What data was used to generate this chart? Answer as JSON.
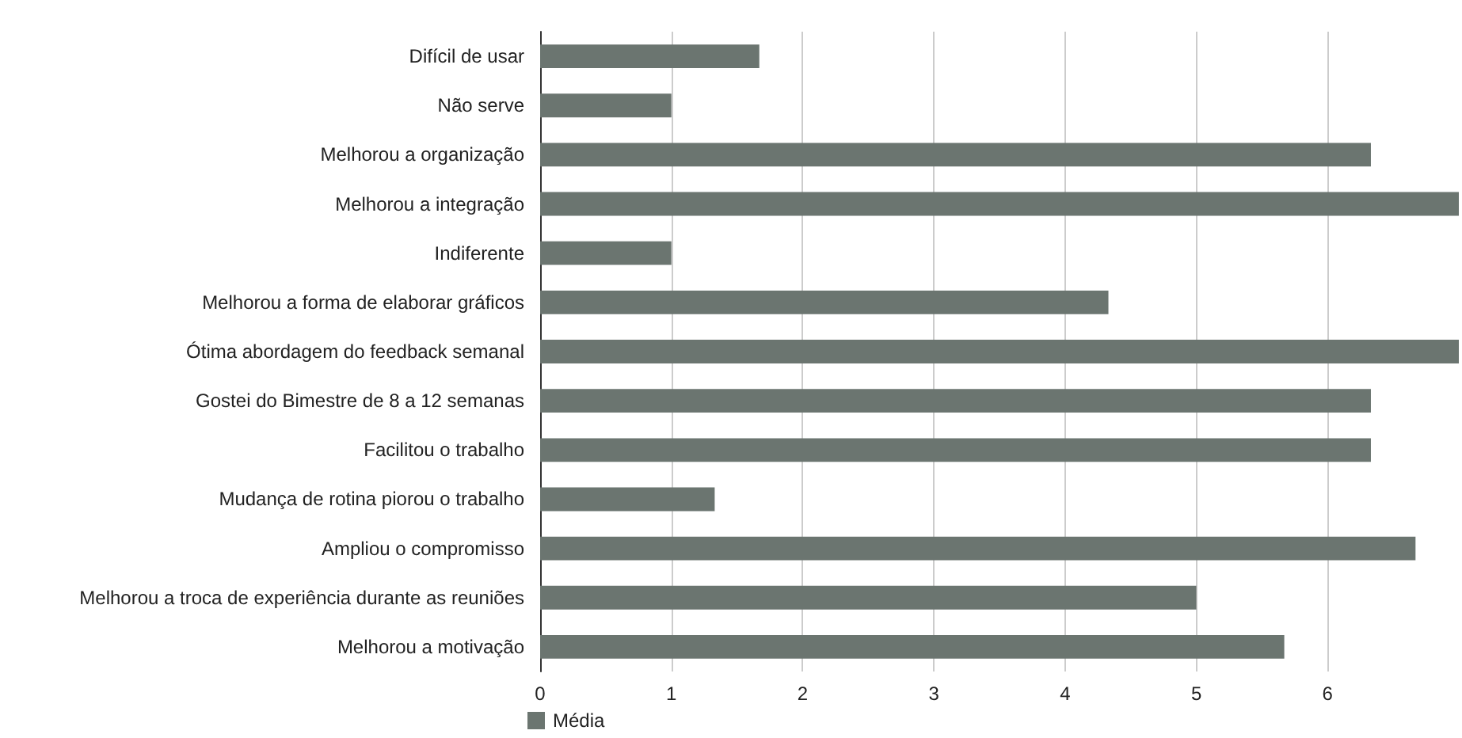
{
  "chart_data": {
    "type": "bar",
    "orientation": "horizontal",
    "categories": [
      "Difícil de usar",
      "Não serve",
      "Melhorou a organização",
      "Melhorou a integração",
      "Indiferente",
      "Melhorou a forma de elaborar gráficos",
      "Ótima abordagem do feedback semanal",
      "Gostei do Bimestre de 8 a 12 semanas",
      "Facilitou o trabalho",
      "Mudança de rotina piorou o trabalho",
      "Ampliou o compromisso",
      "Melhorou a troca de experiência durante as reuniões",
      "Melhorou a motivação"
    ],
    "series": [
      {
        "name": "Média",
        "color": "#6b7570",
        "values": [
          1.67,
          1,
          6.33,
          7,
          1,
          4.33,
          7,
          6.33,
          6.33,
          1.33,
          6.67,
          5,
          5.67
        ]
      }
    ],
    "xlim": [
      0,
      7
    ],
    "xticks": [
      0,
      1,
      2,
      3,
      4,
      5,
      6
    ],
    "grid": "x",
    "legend": "bottom left"
  }
}
